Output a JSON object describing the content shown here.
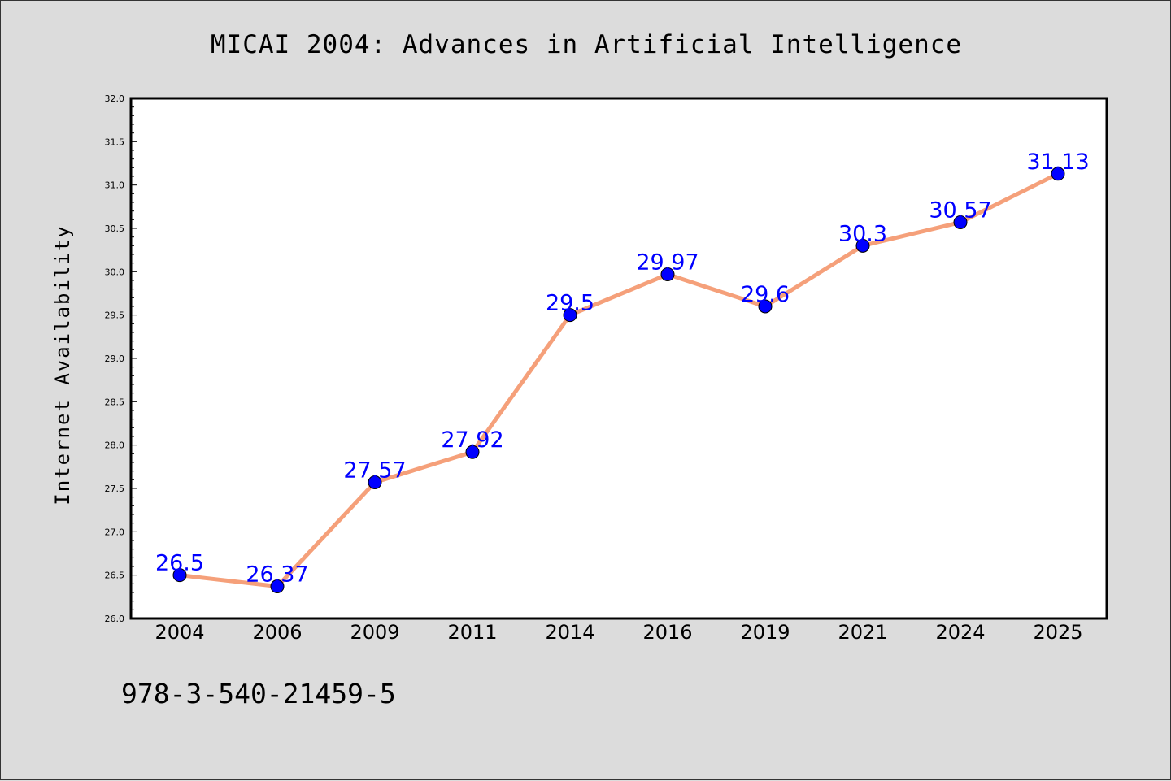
{
  "colors": {
    "background": "#dcdcdc",
    "plot_background": "#ffffff",
    "line": "#f5a07a",
    "marker": "#0000ff",
    "data_label": "#0000ff"
  },
  "footnote": "978-3-540-21459-5",
  "chart_data": {
    "type": "line",
    "title": "MICAI 2004: Advances in Artificial Intelligence",
    "xlabel": "",
    "ylabel": "Internet Availability",
    "categories": [
      "2004",
      "2006",
      "2009",
      "2011",
      "2014",
      "2016",
      "2019",
      "2021",
      "2024",
      "2025"
    ],
    "series": [
      {
        "values": [
          26.5,
          26.37,
          27.57,
          27.92,
          29.5,
          29.97,
          29.6,
          30.3,
          30.57,
          31.13
        ],
        "labels": [
          "26.5",
          "26.37",
          "27.57",
          "27.92",
          "29.5",
          "29.97",
          "29.6",
          "30.3",
          "30.57",
          "31.13"
        ]
      }
    ],
    "ylim": [
      26.0,
      32.0
    ],
    "yticks": [
      "26.0",
      "26.5",
      "27.0",
      "27.5",
      "28.0",
      "28.5",
      "29.0",
      "29.5",
      "30.0",
      "30.5",
      "31.0",
      "31.5",
      "32.0"
    ],
    "grid": false,
    "legend": "none"
  }
}
